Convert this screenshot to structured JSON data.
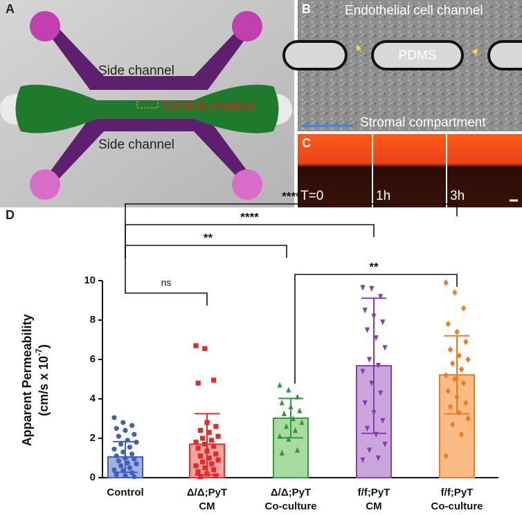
{
  "panels": {
    "a": {
      "label": "A",
      "side_channel_top": "Side channel",
      "side_channel_bottom": "Side channel",
      "central_channel": "Central channel"
    },
    "b": {
      "label": "B",
      "endothelial": "Endothelial cell channel",
      "pdms": "PDMS",
      "stromal": "Stromal compartment"
    },
    "c": {
      "label": "C",
      "times": [
        "T=0",
        "1h",
        "3h"
      ]
    }
  },
  "chart_data": {
    "type": "bar",
    "panel_label": "D",
    "y_label": "Apparent Permeability",
    "y_unit_parts": [
      "(cm/s x 10",
      "-7",
      ")"
    ],
    "categories": [
      [
        "Control"
      ],
      [
        "Δ/Δ;PyT",
        "CM"
      ],
      [
        "Δ/Δ;PyT",
        "Co-culture"
      ],
      [
        "f/f;PyT",
        "CM"
      ],
      [
        "f/f;PyT",
        "Co-culture"
      ]
    ],
    "ylim": [
      0,
      10
    ],
    "yticks": [
      0,
      2,
      4,
      6,
      8,
      10
    ],
    "series": [
      {
        "color": "#3f5fb8",
        "fill": "#9fb2e2",
        "marker": "circle",
        "mean": 1.05,
        "sd": 0.78,
        "points": [
          3.05,
          2.8,
          2.65,
          2.5,
          2.4,
          2.2,
          2.1,
          1.9,
          1.8,
          1.7,
          1.55,
          1.45,
          1.3,
          1.2,
          1.1,
          1.0,
          0.95,
          0.85,
          0.75,
          0.7,
          0.6,
          0.5,
          0.4,
          0.35,
          0.25,
          0.15,
          0.1,
          0.05
        ]
      },
      {
        "color": "#e62a2a",
        "fill": "#f6a49e",
        "marker": "square",
        "mean": 1.7,
        "sd": 1.55,
        "points": [
          6.7,
          6.55,
          4.95,
          4.8,
          2.8,
          2.6,
          2.4,
          2.3,
          2.1,
          2.0,
          1.9,
          1.8,
          1.7,
          1.6,
          1.5,
          1.35,
          1.2,
          1.1,
          1.0,
          0.9,
          0.8,
          0.7,
          0.6,
          0.5,
          0.4,
          0.3,
          0.2,
          0.1,
          0.05
        ]
      },
      {
        "color": "#2f9a40",
        "fill": "#a9dba1",
        "marker": "triangle",
        "mean": 3.02,
        "sd": 1.0,
        "points": [
          4.7,
          4.45,
          4.1,
          3.8,
          3.6,
          3.4,
          3.25,
          3.0,
          2.8,
          2.6,
          2.4,
          2.1,
          1.95,
          1.4,
          1.25
        ]
      },
      {
        "color": "#8a3cb0",
        "fill": "#cba6dc",
        "marker": "triangle-down",
        "mean": 5.68,
        "sd": 3.43,
        "points": [
          9.65,
          9.6,
          9.2,
          8.5,
          8.2,
          7.9,
          7.5,
          7.1,
          6.6,
          6.0,
          5.7,
          5.4,
          4.8,
          4.3,
          3.8,
          3.3,
          2.9,
          2.5,
          2.2,
          1.7,
          1.4,
          1.0,
          0.9
        ]
      },
      {
        "color": "#f27a1e",
        "fill": "#fbbb85",
        "marker": "diamond",
        "mean": 5.22,
        "sd": 1.98,
        "points": [
          9.9,
          9.4,
          8.6,
          7.8,
          7.4,
          6.9,
          6.5,
          6.2,
          6.0,
          5.8,
          5.5,
          5.2,
          5.0,
          4.8,
          4.4,
          4.1,
          3.8,
          3.6,
          3.3,
          3.0,
          2.7,
          2.2,
          1.1
        ]
      }
    ],
    "comparisons": [
      {
        "from": 0,
        "to": 1,
        "label": "ns"
      },
      {
        "from": 0,
        "to": 2,
        "label": "**"
      },
      {
        "from": 0,
        "to": 3,
        "label": "****"
      },
      {
        "from": 0,
        "to": 4,
        "label": "****"
      },
      {
        "from": 2,
        "to": 4,
        "label": "**"
      }
    ]
  }
}
